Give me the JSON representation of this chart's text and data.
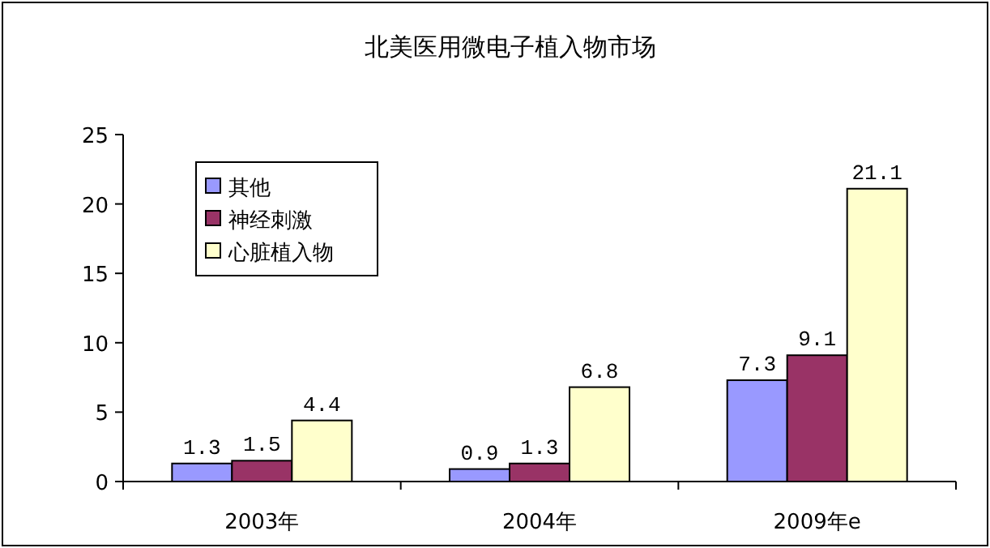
{
  "chart_data": {
    "type": "bar",
    "title": "北美医用微电子植入物市场",
    "categories": [
      "2003年",
      "2004年",
      "2009年e"
    ],
    "series": [
      {
        "name": "其他",
        "color": "#9999ff",
        "values": [
          1.3,
          0.9,
          7.3
        ]
      },
      {
        "name": "神经刺激",
        "color": "#993366",
        "values": [
          1.5,
          1.3,
          9.1
        ]
      },
      {
        "name": "心脏植入物",
        "color": "#ffffcc",
        "values": [
          4.4,
          6.8,
          21.1
        ]
      }
    ],
    "ylim": [
      0,
      25
    ],
    "yticks": [
      0,
      5,
      10,
      15,
      20,
      25
    ],
    "data_labels": true,
    "legend": "top left"
  }
}
